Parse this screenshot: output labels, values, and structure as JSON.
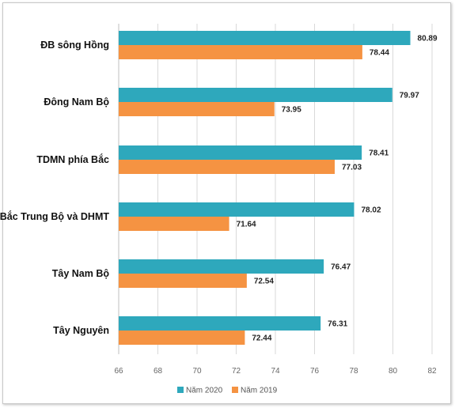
{
  "chart_data": {
    "type": "bar",
    "orientation": "horizontal",
    "categories": [
      "ĐB sông Hồng",
      "Đông Nam Bộ",
      "TDMN phía Bắc",
      "Bắc Trung Bộ và DHMT",
      "Tây Nam Bộ",
      "Tây Nguyên"
    ],
    "series": [
      {
        "name": "Năm 2020",
        "color": "#2ea8bc",
        "values": [
          80.89,
          79.97,
          78.41,
          78.02,
          76.47,
          76.31
        ]
      },
      {
        "name": "Năm 2019",
        "color": "#f59342",
        "values": [
          78.44,
          73.95,
          77.03,
          71.64,
          72.54,
          72.44
        ]
      }
    ],
    "value_labels": {
      "Năm 2020": [
        "80.89",
        "79.97",
        "78.41",
        "78.02",
        "76.47",
        "76.31"
      ],
      "Năm 2019": [
        "78.44",
        "73.95",
        "77.03",
        "71.64",
        "72.54",
        "72.44"
      ]
    },
    "xlim": [
      66,
      82
    ],
    "xticks": [
      "66",
      "68",
      "70",
      "72",
      "74",
      "76",
      "78",
      "80",
      "82"
    ],
    "grid": "vertical",
    "legend_position": "bottom",
    "title": "",
    "xlabel": "",
    "ylabel": ""
  }
}
